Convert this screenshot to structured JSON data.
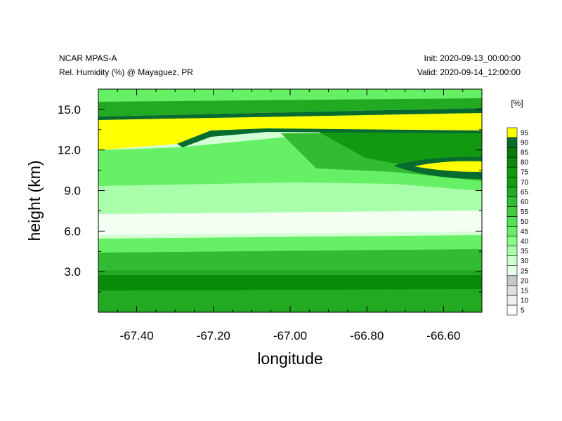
{
  "header": {
    "left_line1": "NCAR MPAS-A",
    "left_line2": "Rel. Humidity (%) @ Mayaguez, PR",
    "right_line1": "Init: 2020-09-13_00:00:00",
    "right_line2": "Valid: 2020-09-14_12:00:00"
  },
  "chart_data": {
    "type": "heatmap",
    "xlabel": "longitude",
    "ylabel": "height (km)",
    "xlim": [
      -67.5,
      -66.5
    ],
    "ylim": [
      0.0,
      16.5
    ],
    "x_ticks": [
      -67.4,
      -67.2,
      -67.0,
      -66.8,
      -66.6
    ],
    "x_tick_labels": [
      "-67.40",
      "-67.20",
      "-67.00",
      "-66.80",
      "-66.60"
    ],
    "y_ticks": [
      3.0,
      6.0,
      9.0,
      12.0,
      15.0
    ],
    "y_tick_labels": [
      "3.0",
      "6.0",
      "9.0",
      "12.0",
      "15.0"
    ],
    "colorbar": {
      "units": "[%]",
      "labels": [
        "5",
        "10",
        "15",
        "20",
        "25",
        "30",
        "35",
        "40",
        "45",
        "50",
        "55",
        "60",
        "65",
        "70",
        "75",
        "80",
        "85",
        "90",
        "95"
      ],
      "colors": [
        "#ffffff",
        "#f0f0f0",
        "#e0e0e0",
        "#c8c8c8",
        "#e8ffe8",
        "#ccffcc",
        "#aaffaa",
        "#88ff88",
        "#66f066",
        "#55e055",
        "#44cc44",
        "#33bb33",
        "#22aa22",
        "#11a011",
        "#119911",
        "#0a8a0a",
        "#087c08",
        "#066b2e",
        "#ffff00"
      ]
    },
    "regions": [
      {
        "rh": "90-95",
        "desc": "thin band near top at ~16 km"
      },
      {
        "rh": "95-100",
        "desc": "saturated layer ~12-14.8 km, west; cloud near -66.7 lon, ~11 km"
      },
      {
        "rh": "25-40",
        "desc": "dry layer ~5-9 km"
      },
      {
        "rh": "80-90",
        "desc": "moist layer below ~3 km"
      }
    ]
  }
}
